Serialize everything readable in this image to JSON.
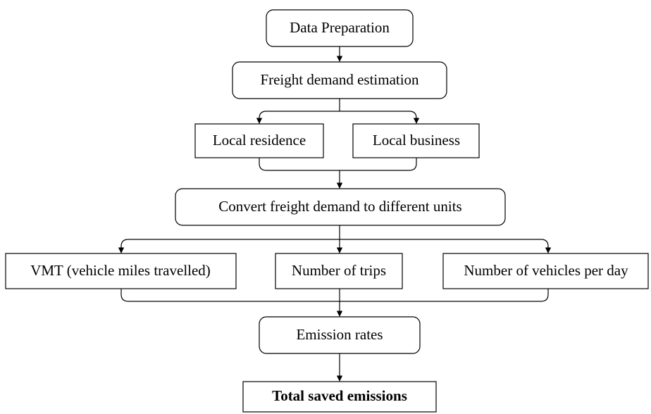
{
  "nodes": [
    {
      "label": "Data Preparation"
    },
    {
      "label": "Freight demand estimation"
    },
    {
      "label": "Local residence"
    },
    {
      "label": "Local business"
    },
    {
      "label": "Convert freight demand to different units"
    },
    {
      "label": "VMT (vehicle miles travelled)"
    },
    {
      "label": "Number of trips"
    },
    {
      "label": "Number of vehicles per day"
    },
    {
      "label": "Emission rates"
    },
    {
      "label": "Total saved emissions"
    }
  ]
}
